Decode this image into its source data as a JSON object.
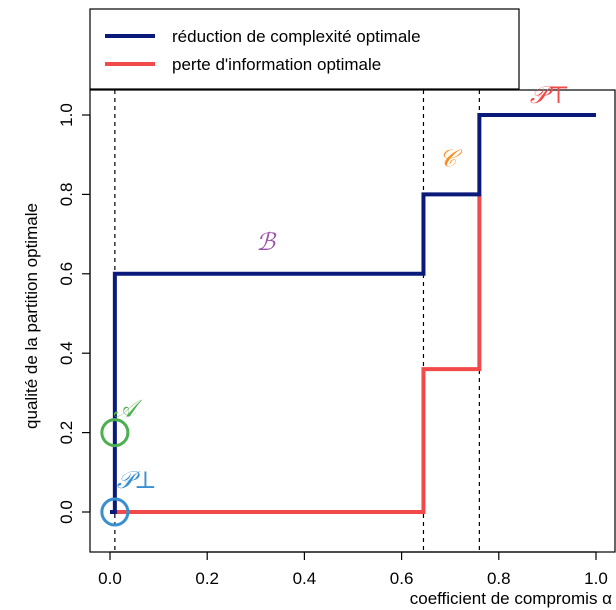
{
  "chart_data": {
    "type": "line",
    "xlabel": "coefficient de compromis α",
    "ylabel": "qualité de la partition optimale",
    "xlim": [
      0.0,
      1.0
    ],
    "ylim": [
      0.0,
      1.0
    ],
    "xticks": [
      "0.0",
      "0.2",
      "0.4",
      "0.6",
      "0.8",
      "1.0"
    ],
    "yticks": [
      "0.0",
      "0.2",
      "0.4",
      "0.6",
      "0.8",
      "1.0"
    ],
    "grid": false,
    "legend_position": "top",
    "series": [
      {
        "name": "réduction de complexité optimale",
        "color": "#0a1a7a",
        "step": true,
        "x": [
          0.0,
          0.01,
          0.645,
          0.76,
          1.0
        ],
        "y": [
          0.0,
          0.6,
          0.8,
          1.0,
          1.0
        ]
      },
      {
        "name": "perte d'information optimale",
        "color": "#f24a4a",
        "step": true,
        "x": [
          0.0,
          0.645,
          0.76,
          0.76
        ],
        "y": [
          0.0,
          0.36,
          0.8,
          0.8
        ]
      }
    ],
    "vlines": [
      0.01,
      0.645,
      0.76
    ],
    "annotations": [
      {
        "text": "𝒜",
        "x": 0.03,
        "y": 0.24,
        "color": "#4caf50"
      },
      {
        "text": "ℬ",
        "x": 0.32,
        "y": 0.66,
        "color": "#9b4fa8"
      },
      {
        "text": "𝒞",
        "x": 0.695,
        "y": 0.87,
        "color": "#ff8c1a"
      },
      {
        "text": "𝒫⊥",
        "x": 0.055,
        "y": 0.06,
        "color": "#3a8fd0"
      },
      {
        "text": "𝒫⊤",
        "x": 0.905,
        "y": 1.03,
        "color": "#f24a4a"
      }
    ],
    "circles": [
      {
        "x": 0.01,
        "y": 0.2,
        "color": "#4caf50"
      },
      {
        "x": 0.01,
        "y": 0.0,
        "color": "#3a8fd0"
      }
    ]
  }
}
